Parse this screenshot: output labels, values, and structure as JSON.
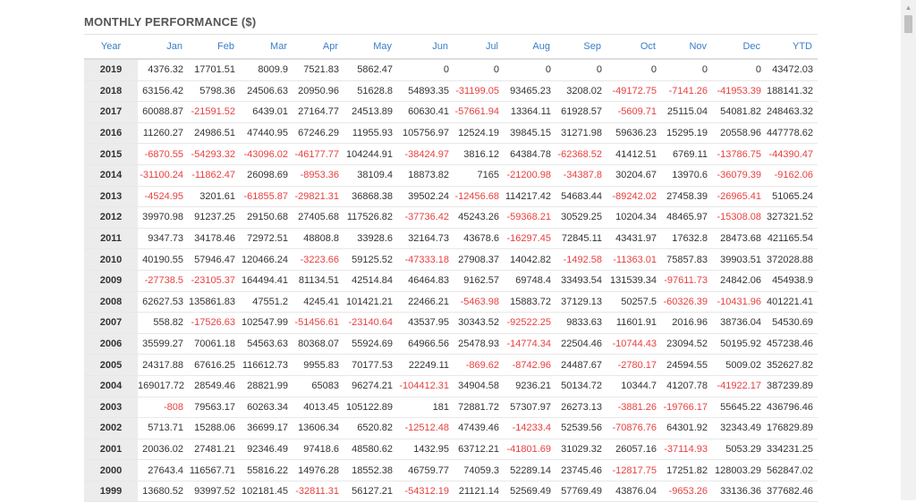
{
  "title": "MONTHLY PERFORMANCE ($)",
  "columns": [
    "Year",
    "Jan",
    "Feb",
    "Mar",
    "Apr",
    "May",
    "Jun",
    "Jul",
    "Aug",
    "Sep",
    "Oct",
    "Nov",
    "Dec",
    "YTD"
  ],
  "colors": {
    "header_text": "#3a7dc9",
    "negative": "#e84040",
    "year_bg": "#ececec"
  },
  "rows": [
    [
      "2019",
      "4376.32",
      "17701.51",
      "8009.9",
      "7521.83",
      "5862.47",
      "0",
      "0",
      "0",
      "0",
      "0",
      "0",
      "0",
      "43472.03"
    ],
    [
      "2018",
      "63156.42",
      "5798.36",
      "24506.63",
      "20950.96",
      "51628.8",
      "54893.35",
      "-31199.05",
      "93465.23",
      "3208.02",
      "-49172.75",
      "-7141.26",
      "-41953.39",
      "188141.32"
    ],
    [
      "2017",
      "60088.87",
      "-21591.52",
      "6439.01",
      "27164.77",
      "24513.89",
      "60630.41",
      "-57661.94",
      "13364.11",
      "61928.57",
      "-5609.71",
      "25115.04",
      "54081.82",
      "248463.32"
    ],
    [
      "2016",
      "11260.27",
      "24986.51",
      "47440.95",
      "67246.29",
      "11955.93",
      "105756.97",
      "12524.19",
      "39845.15",
      "31271.98",
      "59636.23",
      "15295.19",
      "20558.96",
      "447778.62"
    ],
    [
      "2015",
      "-6870.55",
      "-54293.32",
      "-43096.02",
      "-46177.77",
      "104244.91",
      "-38424.97",
      "3816.12",
      "64384.78",
      "-62368.52",
      "41412.51",
      "6769.11",
      "-13786.75",
      "-44390.47"
    ],
    [
      "2014",
      "-31100.24",
      "-11862.47",
      "26098.69",
      "-8953.36",
      "38109.4",
      "18873.82",
      "7165",
      "-21200.98",
      "-34387.8",
      "30204.67",
      "13970.6",
      "-36079.39",
      "-9162.06"
    ],
    [
      "2013",
      "-4524.95",
      "3201.61",
      "-61855.87",
      "-29821.31",
      "36868.38",
      "39502.24",
      "-12456.68",
      "114217.42",
      "54683.44",
      "-89242.02",
      "27458.39",
      "-26965.41",
      "51065.24"
    ],
    [
      "2012",
      "39970.98",
      "91237.25",
      "29150.68",
      "27405.68",
      "117526.82",
      "-37736.42",
      "45243.26",
      "-59368.21",
      "30529.25",
      "10204.34",
      "48465.97",
      "-15308.08",
      "327321.52"
    ],
    [
      "2011",
      "9347.73",
      "34178.46",
      "72972.51",
      "48808.8",
      "33928.6",
      "32164.73",
      "43678.6",
      "-16297.45",
      "72845.11",
      "43431.97",
      "17632.8",
      "28473.68",
      "421165.54"
    ],
    [
      "2010",
      "40190.55",
      "57946.47",
      "120466.24",
      "-3223.66",
      "59125.52",
      "-47333.18",
      "27908.37",
      "14042.82",
      "-1492.58",
      "-11363.01",
      "75857.83",
      "39903.51",
      "372028.88"
    ],
    [
      "2009",
      "-27738.5",
      "-23105.37",
      "164494.41",
      "81134.51",
      "42514.84",
      "46464.83",
      "9162.57",
      "69748.4",
      "33493.54",
      "131539.34",
      "-97611.73",
      "24842.06",
      "454938.9"
    ],
    [
      "2008",
      "62627.53",
      "135861.83",
      "47551.2",
      "4245.41",
      "101421.21",
      "22466.21",
      "-5463.98",
      "15883.72",
      "37129.13",
      "50257.5",
      "-60326.39",
      "-10431.96",
      "401221.41"
    ],
    [
      "2007",
      "558.82",
      "-17526.63",
      "102547.99",
      "-51456.61",
      "-23140.64",
      "43537.95",
      "30343.52",
      "-92522.25",
      "9833.63",
      "11601.91",
      "2016.96",
      "38736.04",
      "54530.69"
    ],
    [
      "2006",
      "35599.27",
      "70061.18",
      "54563.63",
      "80368.07",
      "55924.69",
      "64966.56",
      "25478.93",
      "-14774.34",
      "22504.46",
      "-10744.43",
      "23094.52",
      "50195.92",
      "457238.46"
    ],
    [
      "2005",
      "24317.88",
      "67616.25",
      "116612.73",
      "9955.83",
      "70177.53",
      "22249.11",
      "-869.62",
      "-8742.96",
      "24487.67",
      "-2780.17",
      "24594.55",
      "5009.02",
      "352627.82"
    ],
    [
      "2004",
      "169017.72",
      "28549.46",
      "28821.99",
      "65083",
      "96274.21",
      "-104412.31",
      "34904.58",
      "9236.21",
      "50134.72",
      "10344.7",
      "41207.78",
      "-41922.17",
      "387239.89"
    ],
    [
      "2003",
      "-808",
      "79563.17",
      "60263.34",
      "4013.45",
      "105122.89",
      "181",
      "72881.72",
      "57307.97",
      "26273.13",
      "-3881.26",
      "-19766.17",
      "55645.22",
      "436796.46"
    ],
    [
      "2002",
      "5713.71",
      "15288.06",
      "36699.17",
      "13606.34",
      "6520.82",
      "-12512.48",
      "47439.46",
      "-14233.4",
      "52539.56",
      "-70876.76",
      "64301.92",
      "32343.49",
      "176829.89"
    ],
    [
      "2001",
      "20036.02",
      "27481.21",
      "92346.49",
      "97418.6",
      "48580.62",
      "1432.95",
      "63712.21",
      "-41801.69",
      "31029.32",
      "26057.16",
      "-37114.93",
      "5053.29",
      "334231.25"
    ],
    [
      "2000",
      "27643.4",
      "116567.71",
      "55816.22",
      "14976.28",
      "18552.38",
      "46759.77",
      "74059.3",
      "52289.14",
      "23745.46",
      "-12817.75",
      "17251.82",
      "128003.29",
      "562847.02"
    ],
    [
      "1999",
      "13680.52",
      "93997.52",
      "102181.45",
      "-32811.31",
      "56127.21",
      "-54312.19",
      "21121.14",
      "52569.49",
      "57769.49",
      "43876.04",
      "-9653.26",
      "33136.36",
      "377682.46"
    ]
  ]
}
